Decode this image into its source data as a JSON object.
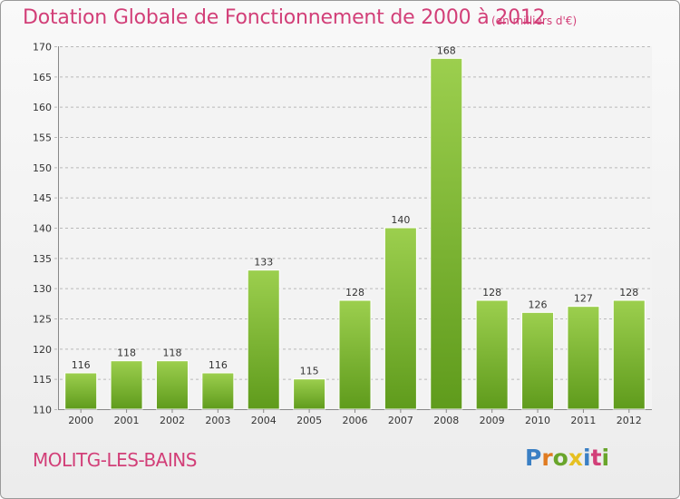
{
  "header": {
    "title": "Dotation Globale de Fonctionnement de 2000 à 2012",
    "subtitle": "(en milliers d'€)"
  },
  "footer": {
    "commune": "MOLITG-LES-BAINS",
    "logo": {
      "text": "Proxiti",
      "letters": [
        {
          "char": "P",
          "color": "#3a7fc4"
        },
        {
          "char": "r",
          "color": "#e07b21"
        },
        {
          "char": "o",
          "color": "#69a52b"
        },
        {
          "char": "x",
          "color": "#e6c021"
        },
        {
          "char": "i",
          "color": "#3a7fc4"
        },
        {
          "char": "t",
          "color": "#d23f78"
        },
        {
          "char": "i",
          "color": "#69a52b"
        }
      ]
    }
  },
  "chart_data": {
    "type": "bar",
    "categories": [
      "2000",
      "2001",
      "2002",
      "2003",
      "2004",
      "2005",
      "2006",
      "2007",
      "2008",
      "2009",
      "2010",
      "2011",
      "2012"
    ],
    "values": [
      116,
      118,
      118,
      116,
      133,
      115,
      128,
      140,
      168,
      128,
      126,
      127,
      128
    ],
    "yticks": [
      110,
      115,
      120,
      125,
      130,
      135,
      140,
      145,
      150,
      155,
      160,
      165,
      170
    ],
    "ylim": [
      110,
      170
    ],
    "grid": true,
    "bar_color_top": "#9ccf4e",
    "bar_color_bottom": "#5f9b1c",
    "label_color": "#333333",
    "grid_color": "#b9b9b9"
  }
}
